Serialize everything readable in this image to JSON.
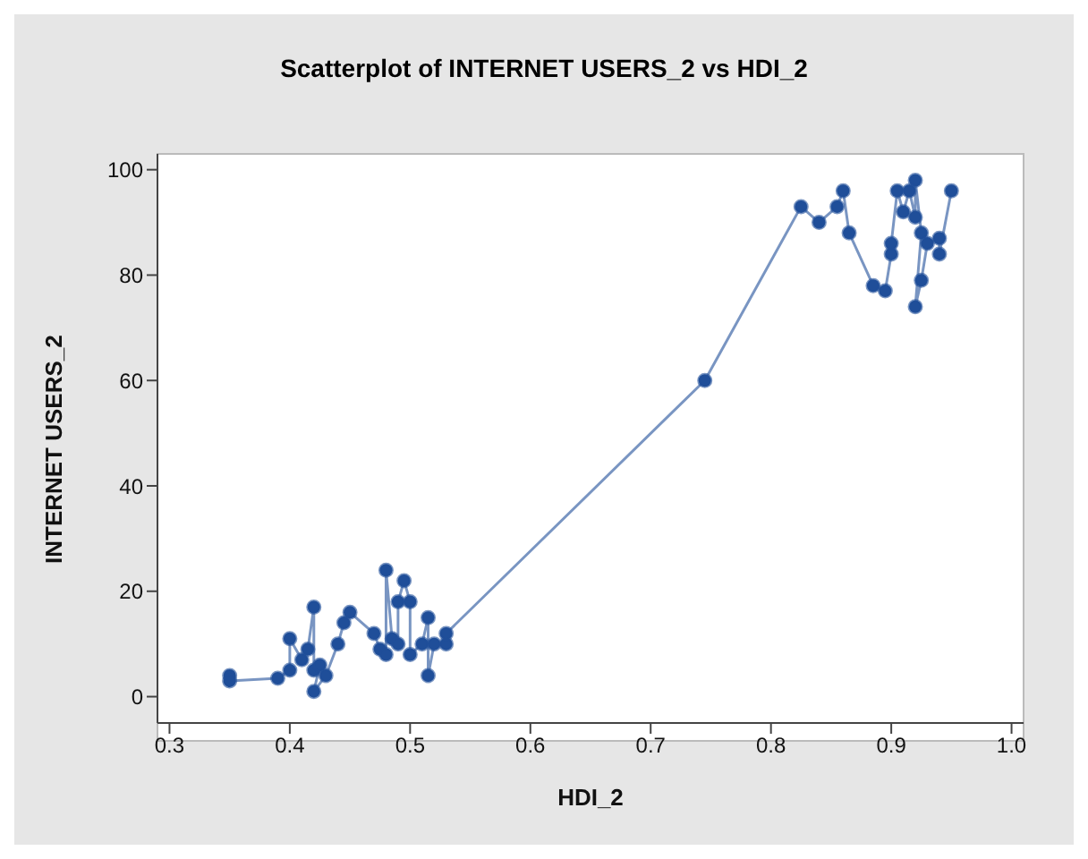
{
  "chart_data": {
    "type": "line",
    "title": "Scatterplot of INTERNET USERS_2 vs HDI_2",
    "xlabel": "HDI_2",
    "ylabel": "INTERNET USERS_2",
    "x": [
      0.35,
      0.35,
      0.39,
      0.4,
      0.4,
      0.41,
      0.415,
      0.42,
      0.42,
      0.425,
      0.42,
      0.43,
      0.44,
      0.445,
      0.45,
      0.47,
      0.475,
      0.48,
      0.48,
      0.485,
      0.49,
      0.49,
      0.495,
      0.5,
      0.5,
      0.51,
      0.515,
      0.515,
      0.52,
      0.53,
      0.53,
      0.745,
      0.825,
      0.84,
      0.855,
      0.86,
      0.865,
      0.885,
      0.895,
      0.9,
      0.9,
      0.905,
      0.91,
      0.915,
      0.92,
      0.92,
      0.925,
      0.92,
      0.925,
      0.93,
      0.94,
      0.94,
      0.95
    ],
    "series": [
      {
        "color": "#1f4e99",
        "line_style": "solid",
        "values": [
          4,
          3,
          3.5,
          5,
          11,
          7,
          9,
          17,
          5,
          6,
          1,
          4,
          10,
          14,
          16,
          12,
          9,
          8,
          24,
          11,
          10,
          18,
          22,
          18,
          8,
          10,
          15,
          4,
          10,
          10,
          12,
          60,
          93,
          90,
          93,
          96,
          88,
          78,
          77,
          84,
          86,
          96,
          92,
          96,
          91,
          98,
          88,
          74,
          79,
          86,
          87,
          84,
          96
        ]
      }
    ],
    "xlim": [
      0.29,
      1.01
    ],
    "ylim": [
      -5,
      103
    ],
    "xticks": [
      0.3,
      0.4,
      0.5,
      0.6,
      0.7,
      0.8,
      0.9,
      {
        "value": 1,
        "label": "1.0"
      }
    ],
    "yticks": [
      0,
      20,
      40,
      60,
      80,
      100
    ],
    "marker": "circle"
  }
}
